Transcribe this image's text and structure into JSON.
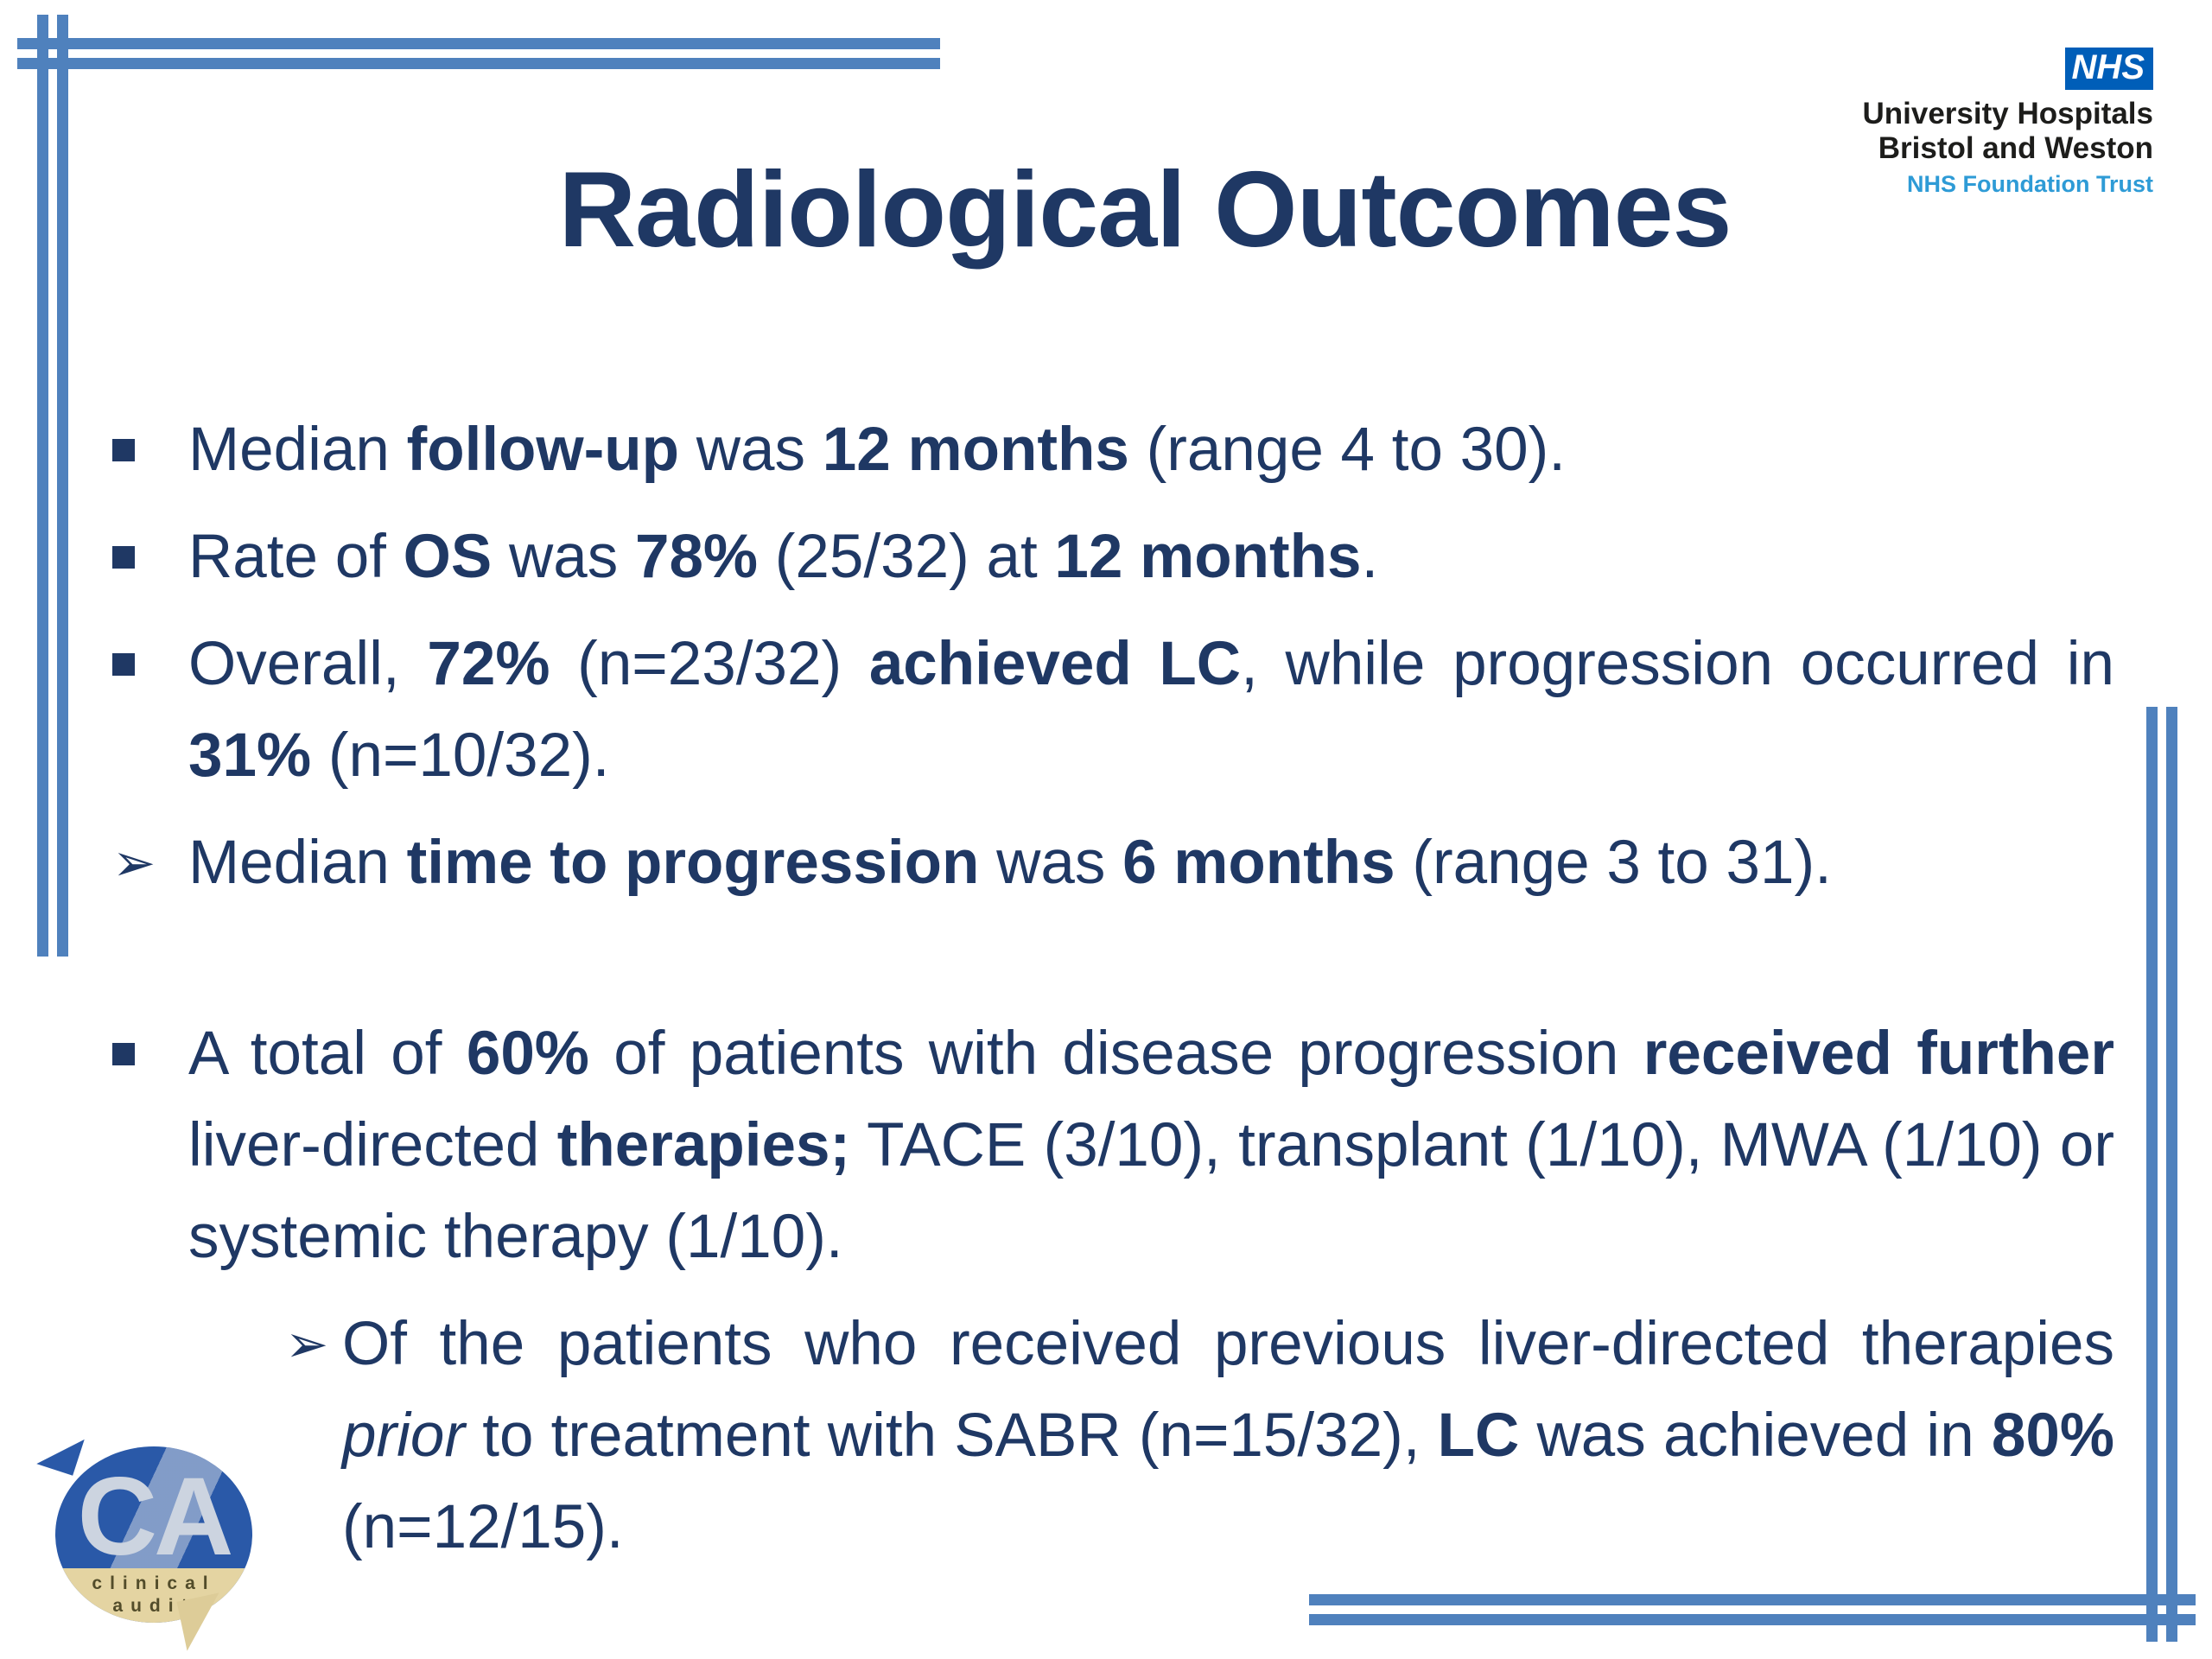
{
  "title": "Radiological Outcomes",
  "colors": {
    "text_navy": "#1f3864",
    "border_blue": "#4f81bd",
    "nhs_blue": "#005eb8",
    "nhs_light_blue": "#2e9bd6",
    "ca_logo_blue": "#2a59a8",
    "ca_logo_tan": "#e4d4a2"
  },
  "nhs_logo": {
    "nhs": "NHS",
    "line1": "University Hospitals",
    "line2": "Bristol and Weston",
    "line3": "NHS Foundation Trust"
  },
  "ca_logo": {
    "initials": "CA",
    "word1": "clinical",
    "word2": "audit"
  },
  "markers": {
    "arrow": "➢"
  },
  "content": {
    "paragraphs": [
      {
        "marker": "square",
        "segments": [
          {
            "t": "Median "
          },
          {
            "t": "follow-up",
            "b": true
          },
          {
            "t": " was "
          },
          {
            "t": "12 months",
            "b": true
          },
          {
            "t": " (range 4 to 30)."
          }
        ]
      },
      {
        "marker": "square",
        "segments": [
          {
            "t": "Rate of "
          },
          {
            "t": "OS",
            "b": true
          },
          {
            "t": " was "
          },
          {
            "t": "78%",
            "b": true
          },
          {
            "t": " (25/32) at "
          },
          {
            "t": "12 months",
            "b": true
          },
          {
            "t": "."
          }
        ]
      },
      {
        "marker": "square",
        "segments": [
          {
            "t": "Overall, "
          },
          {
            "t": "72%",
            "b": true
          },
          {
            "t": " (n=23/32) "
          },
          {
            "t": "achieved LC",
            "b": true
          },
          {
            "t": ", while progression occurred in "
          },
          {
            "t": "31%",
            "b": true
          },
          {
            "t": " (n=10/32)."
          }
        ]
      },
      {
        "marker": "arrow",
        "segments": [
          {
            "t": "Median "
          },
          {
            "t": "time to progression",
            "b": true
          },
          {
            "t": " was "
          },
          {
            "t": "6 months",
            "b": true
          },
          {
            "t": " (range 3 to 31)."
          }
        ]
      },
      {
        "marker": "square",
        "segments": [
          {
            "t": "A total of "
          },
          {
            "t": "60%",
            "b": true
          },
          {
            "t": " of patients with disease progression "
          },
          {
            "t": "received further",
            "b": true
          },
          {
            "t": " liver-directed "
          },
          {
            "t": "therapies;",
            "b": true
          },
          {
            "t": " TACE (3/10), transplant (1/10), MWA (1/10) or systemic therapy (1/10)."
          }
        ]
      },
      {
        "marker": "arrow",
        "segments": [
          {
            "t": "Of the patients who received previous liver-directed therapies "
          },
          {
            "t": "prior",
            "i": true
          },
          {
            "t": " to treatment with SABR (n=15/32), "
          },
          {
            "t": "LC",
            "b": true
          },
          {
            "t": " was achieved in "
          },
          {
            "t": "80%",
            "b": true
          },
          {
            "t": " (n=12/15)."
          }
        ]
      }
    ]
  }
}
